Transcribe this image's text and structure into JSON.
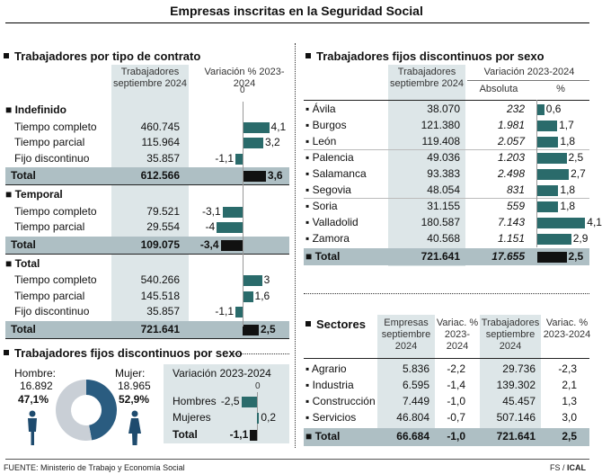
{
  "title": "Empresas inscritas en la Seguridad Social",
  "contrato": {
    "section_title": "Trabajadores por tipo de contrato",
    "col1": "Trabajadores septiembre 2024",
    "col2": "Variación % 2023-2024",
    "zero_label": "0",
    "groups": [
      {
        "name": "Indefinido",
        "rows": [
          {
            "label": "Tiempo completo",
            "value": "460.745",
            "var": 4.1,
            "var_label": "4,1"
          },
          {
            "label": "Tiempo parcial",
            "value": "115.964",
            "var": 3.2,
            "var_label": "3,2"
          },
          {
            "label": "Fijo discontinuo",
            "value": "35.857",
            "var": -1.1,
            "var_label": "-1,1"
          }
        ],
        "total_label": "Total",
        "total_value": "612.566",
        "total_var": 3.6,
        "total_var_label": "3,6"
      },
      {
        "name": "Temporal",
        "rows": [
          {
            "label": "Tiempo completo",
            "value": "79.521",
            "var": -3.1,
            "var_label": "-3,1"
          },
          {
            "label": "Tiempo parcial",
            "value": "29.554",
            "var": -4.0,
            "var_label": "-4"
          }
        ],
        "total_label": "Total",
        "total_value": "109.075",
        "total_var": -3.4,
        "total_var_label": "-3,4"
      },
      {
        "name": "Total",
        "rows": [
          {
            "label": "Tiempo completo",
            "value": "540.266",
            "var": 3.0,
            "var_label": "3"
          },
          {
            "label": "Tiempo parcial",
            "value": "145.518",
            "var": 1.6,
            "var_label": "1,6"
          },
          {
            "label": "Fijo discontinuo",
            "value": "35.857",
            "var": -1.1,
            "var_label": "-1,1"
          }
        ],
        "total_label": "Total",
        "total_value": "721.641",
        "total_var": 2.5,
        "total_var_label": "2,5"
      }
    ]
  },
  "sexo": {
    "section_title": "Trabajadores fijos discontinuos por sexo",
    "hombre_label": "Hombre:",
    "hombre_value": "16.892",
    "hombre_pct": "47,1%",
    "mujer_label": "Mujer:",
    "mujer_value": "18.965",
    "mujer_pct": "52,9%",
    "donut": {
      "hombre": 47.1,
      "mujer": 52.9
    },
    "var_title": "Variación 2023-2024",
    "zero_label": "0",
    "rows": [
      {
        "label": "Hombres",
        "var": -2.5,
        "var_label": "-2,5"
      },
      {
        "label": "Mujeres",
        "var": 0.2,
        "var_label": "0,2"
      }
    ],
    "total_label": "Total",
    "total_var": -1.1,
    "total_var_label": "-1,1",
    "colors": {
      "hombre": "#2a5c80",
      "mujer": "#c9cfd6"
    }
  },
  "provincias": {
    "section_title": "Trabajadores fijos discontinuos por sexo",
    "col1": "Trabajadores septiembre 2024",
    "col2": "Variación 2023-2024",
    "col2a": "Absoluta",
    "col2b": "%",
    "rows": [
      {
        "label": "Ávila",
        "value": "38.070",
        "abs": "232",
        "pct": 0.6,
        "pct_label": "0,6"
      },
      {
        "label": "Burgos",
        "value": "121.380",
        "abs": "1.981",
        "pct": 1.7,
        "pct_label": "1,7"
      },
      {
        "label": "León",
        "value": "119.408",
        "abs": "2.057",
        "pct": 1.8,
        "pct_label": "1,8"
      },
      {
        "label": "Palencia",
        "value": "49.036",
        "abs": "1.203",
        "pct": 2.5,
        "pct_label": "2,5"
      },
      {
        "label": "Salamanca",
        "value": "93.383",
        "abs": "2.498",
        "pct": 2.7,
        "pct_label": "2,7"
      },
      {
        "label": "Segovia",
        "value": "48.054",
        "abs": "831",
        "pct": 1.8,
        "pct_label": "1,8"
      },
      {
        "label": "Soria",
        "value": "31.155",
        "abs": "559",
        "pct": 1.8,
        "pct_label": "1,8"
      },
      {
        "label": "Valladolid",
        "value": "180.587",
        "abs": "7.143",
        "pct": 4.1,
        "pct_label": "4,1"
      },
      {
        "label": "Zamora",
        "value": "40.568",
        "abs": "1.151",
        "pct": 2.9,
        "pct_label": "2,9"
      }
    ],
    "total_label": "Total",
    "total_value": "721.641",
    "total_abs": "17.655",
    "total_pct": 2.5,
    "total_pct_label": "2,5"
  },
  "sectores": {
    "section_title": "Sectores",
    "col1": "Empresas septiembre 2024",
    "col2": "Variac. % 2023-2024",
    "col3": "Trabajadores septiembre 2024",
    "col4": "Variac. % 2023-2024",
    "rows": [
      {
        "label": "Agrario",
        "emp": "5.836",
        "emp_var": "-2,2",
        "trab": "29.736",
        "trab_var": "-2,3"
      },
      {
        "label": "Industria",
        "emp": "6.595",
        "emp_var": "-1,4",
        "trab": "139.302",
        "trab_var": "2,1"
      },
      {
        "label": "Construcción",
        "emp": "7.449",
        "emp_var": "-1,0",
        "trab": "45.457",
        "trab_var": "1,3"
      },
      {
        "label": "Servicios",
        "emp": "46.804",
        "emp_var": "-0,7",
        "trab": "507.146",
        "trab_var": "3,0"
      }
    ],
    "total_label": "Total",
    "total_emp": "66.684",
    "total_emp_var": "-1,0",
    "total_trab": "721.641",
    "total_trab_var": "2,5"
  },
  "footer": {
    "source": "FUENTE: Ministerio de Trabajo y Economía Social",
    "credit_fs": "FS /",
    "credit_ical": "ICAL"
  },
  "chart_data": [
    {
      "type": "bar",
      "title": "Trabajadores por tipo de contrato",
      "ylabel": "Variación % 2023-2024",
      "categories": [
        "Indefinido Tiempo completo",
        "Indefinido Tiempo parcial",
        "Indefinido Fijo discontinuo",
        "Indefinido Total",
        "Temporal Tiempo completo",
        "Temporal Tiempo parcial",
        "Temporal Total",
        "Total Tiempo completo",
        "Total Tiempo parcial",
        "Total Fijo discontinuo",
        "Total"
      ],
      "values": [
        4.1,
        3.2,
        -1.1,
        3.6,
        -3.1,
        -4.0,
        -3.4,
        3.0,
        1.6,
        -1.1,
        2.5
      ]
    },
    {
      "type": "bar",
      "title": "Trabajadores fijos discontinuos por sexo",
      "ylabel": "%",
      "categories": [
        "Ávila",
        "Burgos",
        "León",
        "Palencia",
        "Salamanca",
        "Segovia",
        "Soria",
        "Valladolid",
        "Zamora",
        "Total"
      ],
      "values": [
        0.6,
        1.7,
        1.8,
        2.5,
        2.7,
        1.8,
        1.8,
        4.1,
        2.9,
        2.5
      ]
    },
    {
      "type": "pie",
      "title": "Trabajadores fijos discontinuos por sexo",
      "categories": [
        "Hombre",
        "Mujer"
      ],
      "values": [
        47.1,
        52.9
      ]
    },
    {
      "type": "bar",
      "title": "Variación 2023-2024",
      "categories": [
        "Hombres",
        "Mujeres",
        "Total"
      ],
      "values": [
        -2.5,
        0.2,
        -1.1
      ]
    }
  ]
}
